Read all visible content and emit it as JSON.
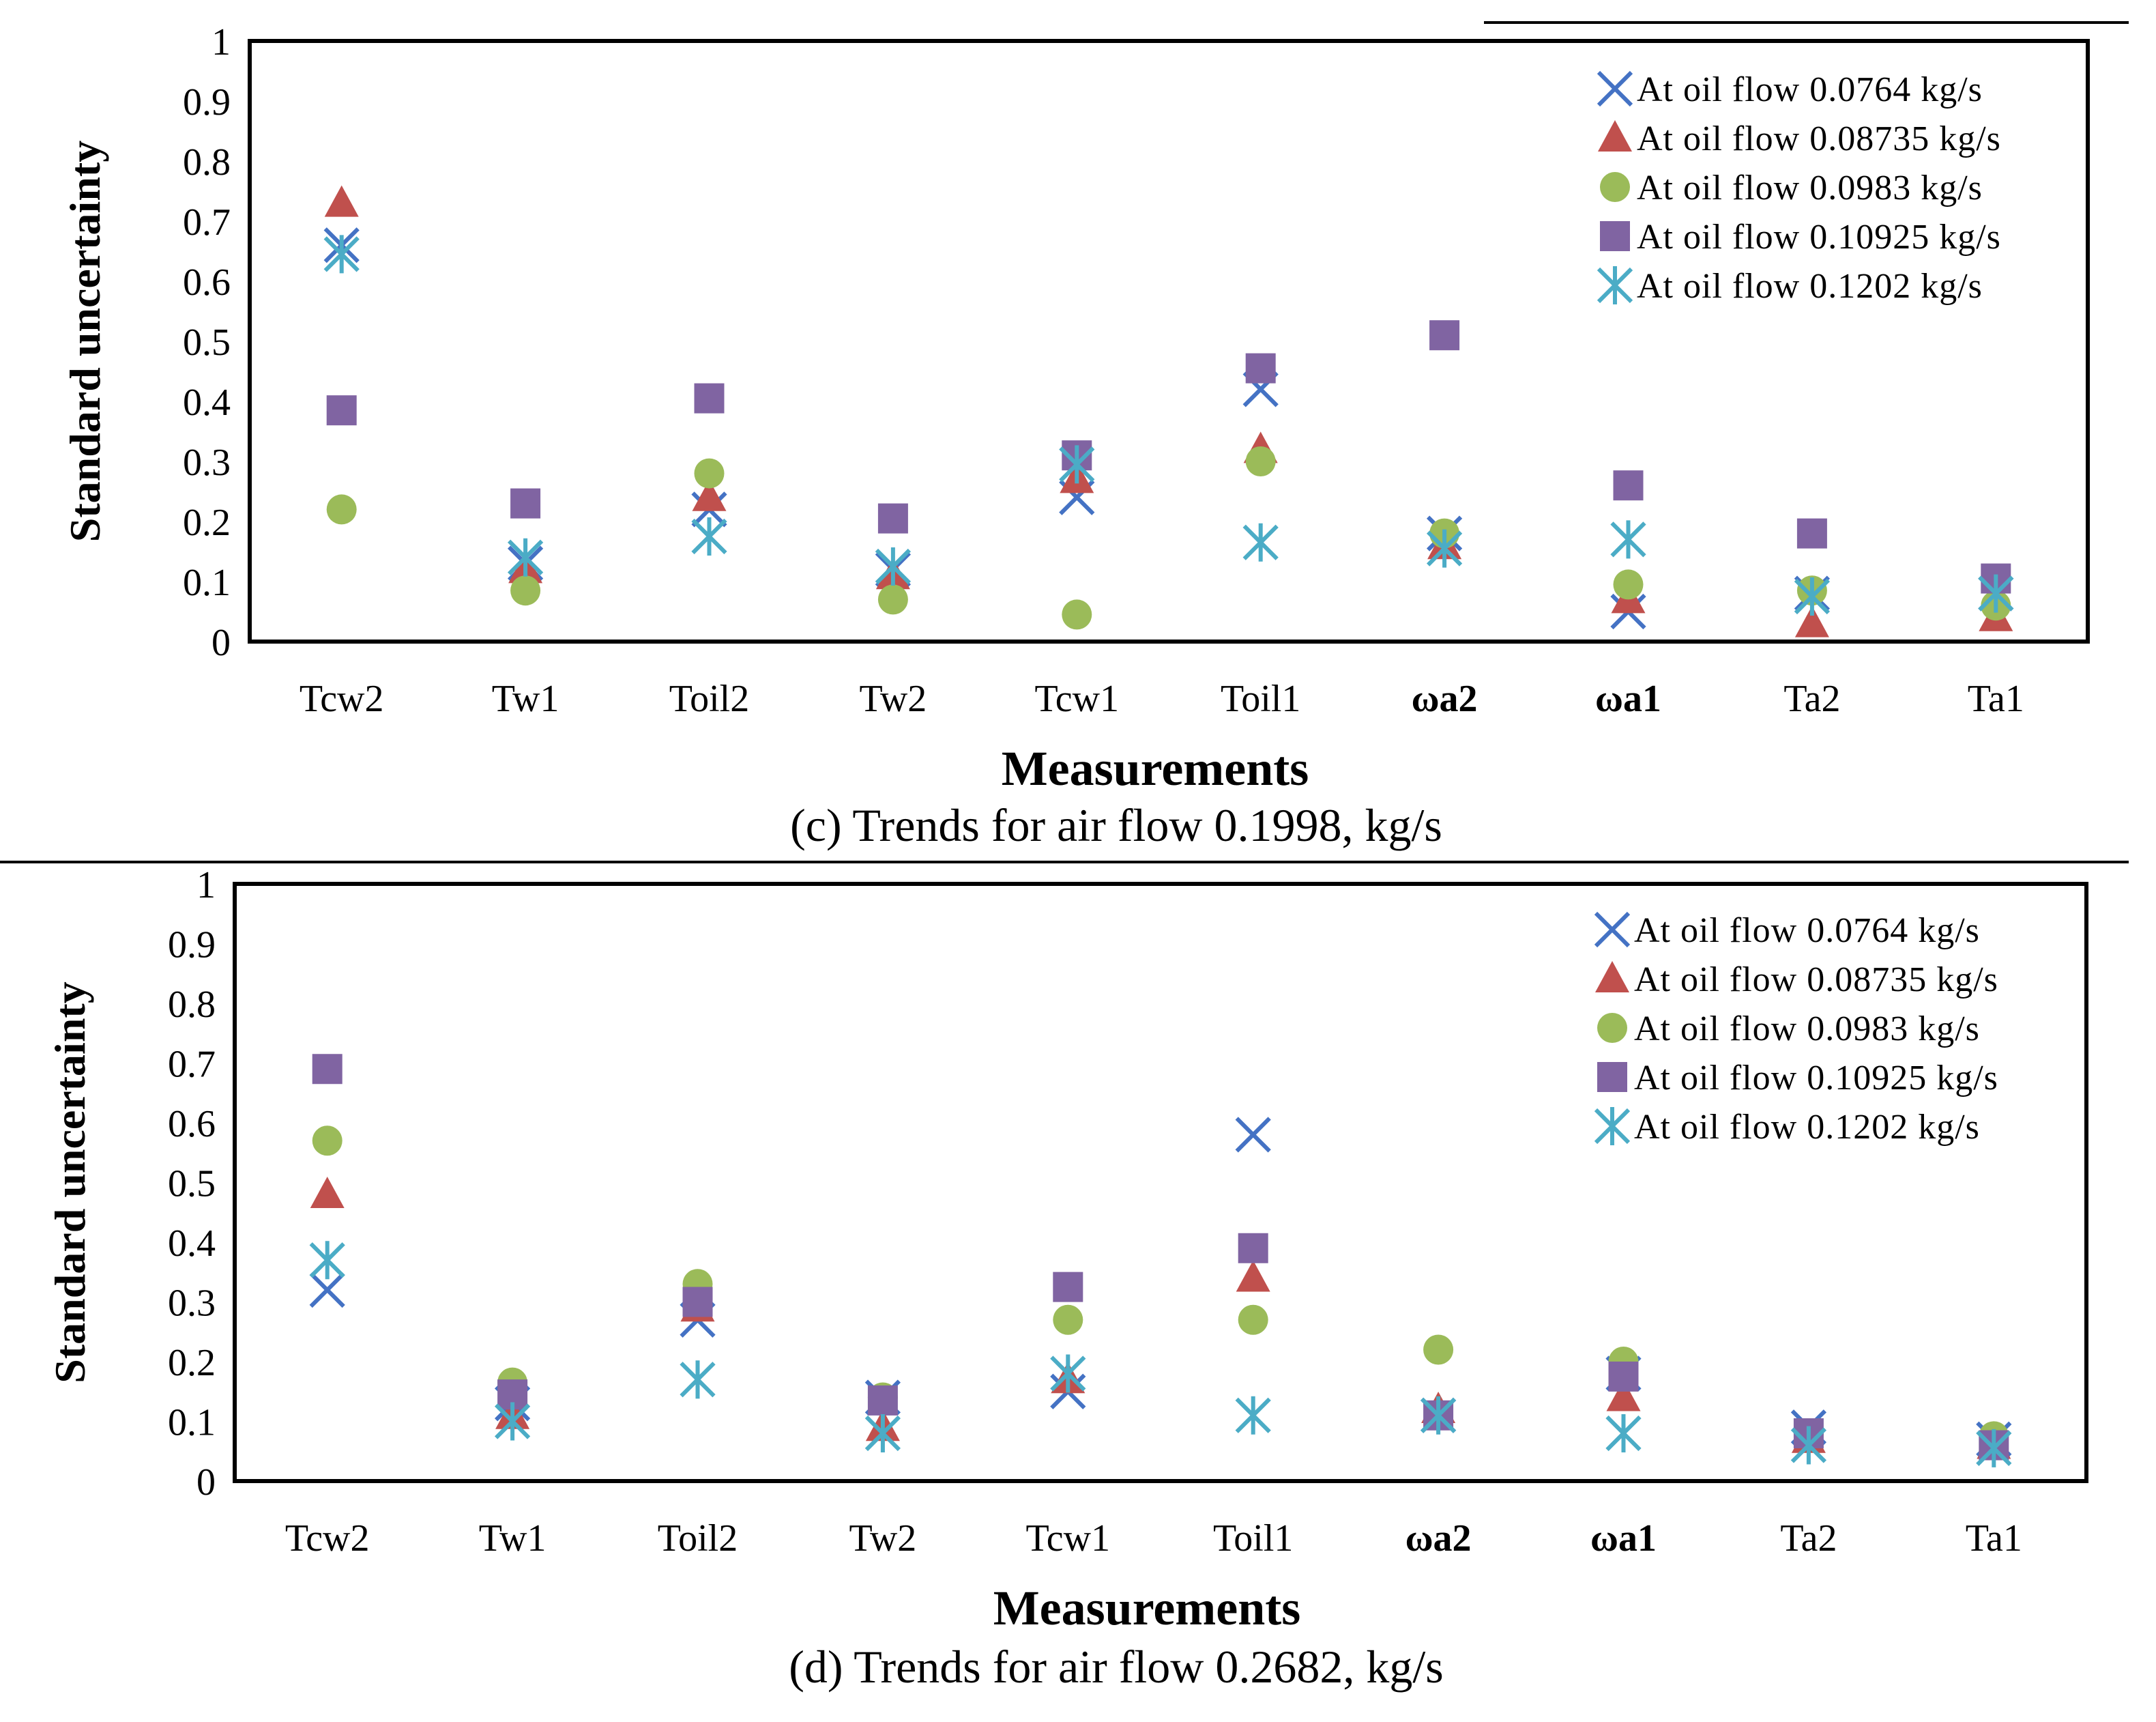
{
  "chart_data": [
    {
      "type": "scatter",
      "caption": "(c) Trends for air flow 0.1998, kg/s",
      "xlabel": "Measurements",
      "ylabel": "Standard uncertainty",
      "ylim": [
        0,
        1
      ],
      "yticks": [
        "0",
        "0.1",
        "0.2",
        "0.3",
        "0.4",
        "0.5",
        "0.6",
        "0.7",
        "0.8",
        "0.9",
        "1"
      ],
      "categories": [
        "Tcw2",
        "Tw1",
        "Toil2",
        "Tw2",
        "Tcw1",
        "Toil1",
        "ωa2",
        "ωa1",
        "Ta2",
        "Ta1"
      ],
      "legend_position": "top-right",
      "series": [
        {
          "name": "At oil flow 0.0764 kg/s",
          "marker": "x",
          "color": "#4472C4",
          "values": [
            0.66,
            0.13,
            0.22,
            0.12,
            0.24,
            0.42,
            0.18,
            0.05,
            0.08,
            0.08
          ]
        },
        {
          "name": "At oil flow 0.08735 kg/s",
          "marker": "triangle",
          "color": "#C0504D",
          "values": [
            0.73,
            0.12,
            0.24,
            0.11,
            0.27,
            0.32,
            0.16,
            0.07,
            0.03,
            0.04
          ]
        },
        {
          "name": "At oil flow 0.0983 kg/s",
          "marker": "circle",
          "color": "#9BBB59",
          "values": [
            0.22,
            0.085,
            0.28,
            0.07,
            0.045,
            0.3,
            0.18,
            0.095,
            0.085,
            0.06
          ]
        },
        {
          "name": "At oil flow 0.10925 kg/s",
          "marker": "square",
          "color": "#8064A2",
          "values": [
            0.385,
            0.23,
            0.405,
            0.205,
            0.31,
            0.455,
            0.51,
            0.26,
            0.18,
            0.105
          ]
        },
        {
          "name": "At oil flow 0.1202 kg/s",
          "marker": "asterisk",
          "color": "#4BACC6",
          "values": [
            0.645,
            0.14,
            0.175,
            0.125,
            0.295,
            0.165,
            0.155,
            0.17,
            0.075,
            0.08
          ]
        }
      ]
    },
    {
      "type": "scatter",
      "caption": "(d) Trends for air flow 0.2682, kg/s",
      "xlabel": "Measurements",
      "ylabel": "Standard uncertainty",
      "ylim": [
        0,
        1
      ],
      "yticks": [
        "0",
        "0.1",
        "0.2",
        "0.3",
        "0.4",
        "0.5",
        "0.6",
        "0.7",
        "0.8",
        "0.9",
        "1"
      ],
      "categories": [
        "Tcw2",
        "Tw1",
        "Toil2",
        "Tw2",
        "Tcw1",
        "Toil1",
        "ωa2",
        "ωa1",
        "Ta2",
        "Ta1"
      ],
      "legend_position": "top-right",
      "series": [
        {
          "name": "At oil flow 0.0764 kg/s",
          "marker": "x",
          "color": "#4472C4",
          "values": [
            0.32,
            0.13,
            0.27,
            0.14,
            0.15,
            0.58,
            0.11,
            0.18,
            0.09,
            0.07
          ]
        },
        {
          "name": "At oil flow 0.08735 kg/s",
          "marker": "triangle",
          "color": "#C0504D",
          "values": [
            0.48,
            0.11,
            0.29,
            0.09,
            0.17,
            0.34,
            0.12,
            0.14,
            0.07,
            0.06
          ]
        },
        {
          "name": "At oil flow 0.0983 kg/s",
          "marker": "circle",
          "color": "#9BBB59",
          "values": [
            0.57,
            0.165,
            0.33,
            0.14,
            0.27,
            0.27,
            0.22,
            0.2,
            0.08,
            0.075
          ]
        },
        {
          "name": "At oil flow 0.10925 kg/s",
          "marker": "square",
          "color": "#8064A2",
          "values": [
            0.69,
            0.145,
            0.3,
            0.135,
            0.325,
            0.39,
            0.11,
            0.175,
            0.08,
            0.06
          ]
        },
        {
          "name": "At oil flow 0.1202 kg/s",
          "marker": "asterisk",
          "color": "#4BACC6",
          "values": [
            0.37,
            0.1,
            0.17,
            0.08,
            0.18,
            0.11,
            0.11,
            0.08,
            0.06,
            0.055
          ]
        }
      ]
    }
  ]
}
